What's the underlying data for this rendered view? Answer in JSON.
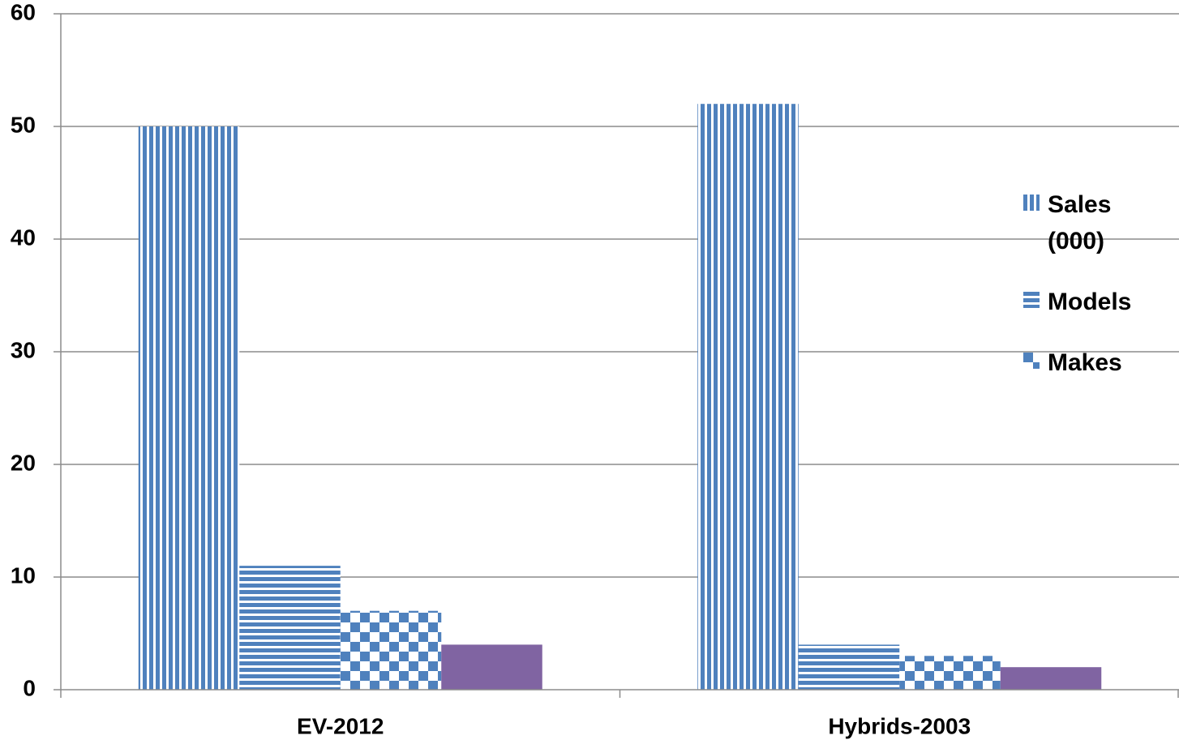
{
  "chart_data": {
    "type": "bar",
    "categories": [
      "EV-2012",
      "Hybrids-2003"
    ],
    "series": [
      {
        "name": "Sales (000)",
        "color": "#4f81bd",
        "pattern": "vertical",
        "values": [
          50,
          52
        ]
      },
      {
        "name": "Models",
        "color": "#4f81bd",
        "pattern": "horizontal",
        "values": [
          11,
          4
        ]
      },
      {
        "name": "Makes",
        "color": "#4f81bd",
        "pattern": "checker",
        "values": [
          7,
          3
        ]
      },
      {
        "name": null,
        "color": "#8064a2",
        "pattern": "solid",
        "values": [
          4,
          2
        ]
      }
    ],
    "ylim": [
      0,
      60
    ],
    "yticks": [
      0,
      10,
      20,
      30,
      40,
      50,
      60
    ],
    "grid": true,
    "legend": "right"
  }
}
